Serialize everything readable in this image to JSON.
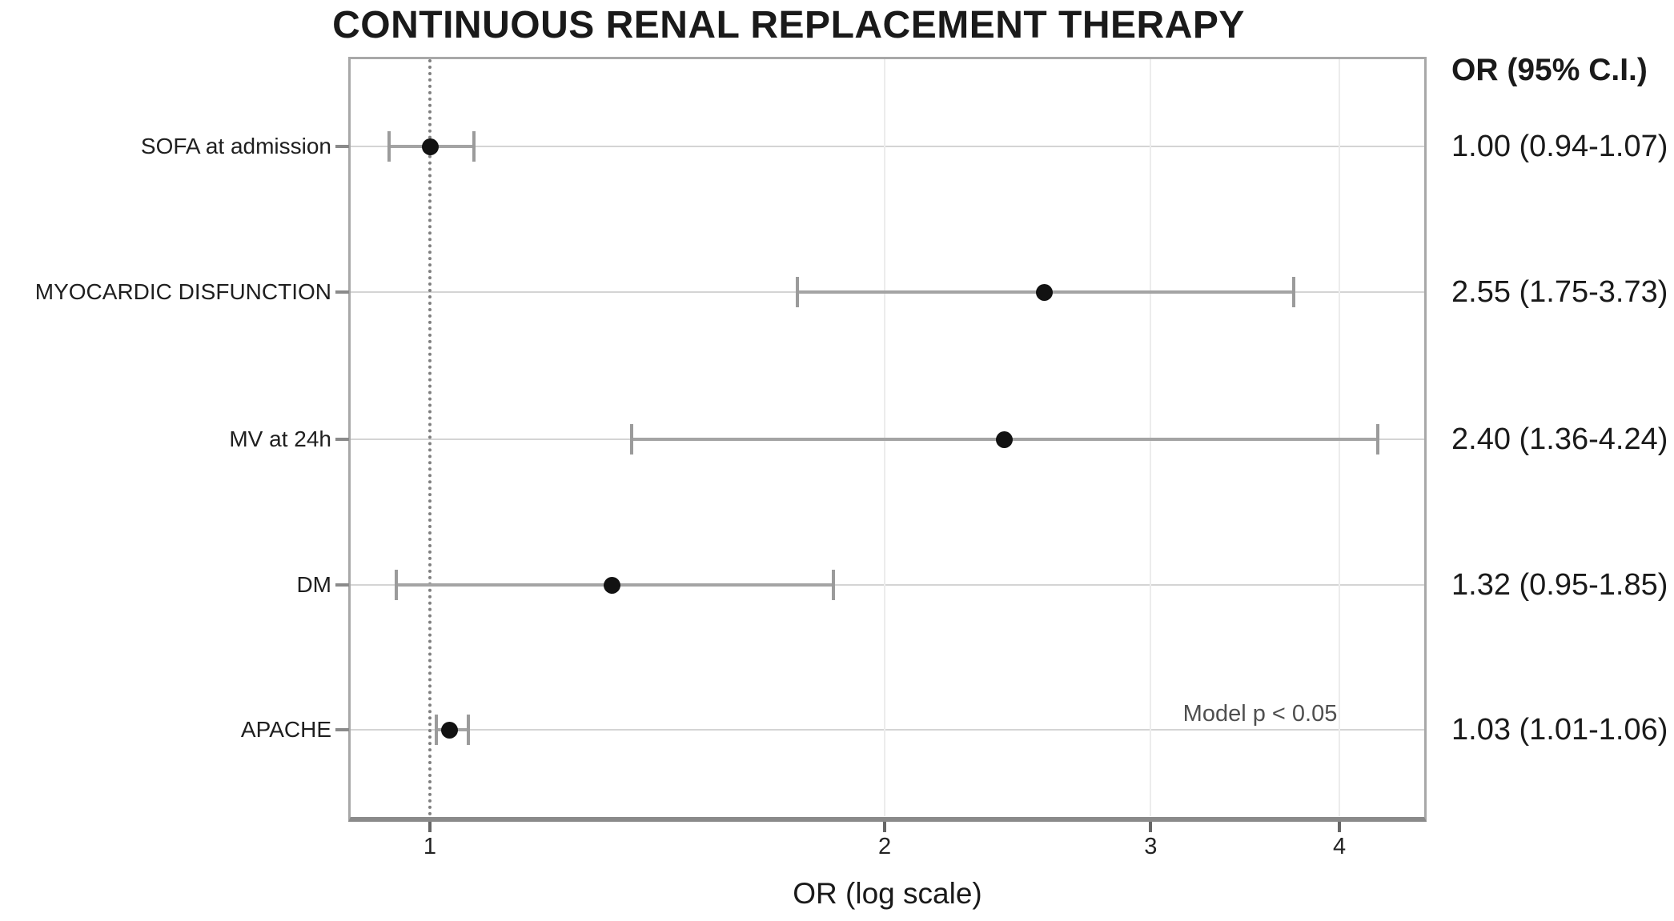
{
  "chart_data": {
    "type": "scatter",
    "variant": "forest-plot",
    "title": "CONTINUOUS RENAL REPLACEMENT THERAPY",
    "xlabel": "OR (log scale)",
    "value_column_header": "OR (95% C.I.)",
    "x_scale": "log",
    "x_ticks": [
      "1",
      "2",
      "3",
      "4"
    ],
    "x_tick_values": [
      1,
      2,
      3,
      4
    ],
    "xlim": [
      0.88,
      4.57
    ],
    "reference_line_x": 1,
    "grid": true,
    "legend": "none",
    "rows": [
      {
        "label": "SOFA at admission",
        "or": 1.0,
        "ci_low": 0.94,
        "ci_high": 1.07,
        "or_text": "1.00 (0.94-1.07)"
      },
      {
        "label": "MYOCARDIC DISFUNCTION",
        "or": 2.55,
        "ci_low": 1.75,
        "ci_high": 3.73,
        "or_text": "2.55 (1.75-3.73)"
      },
      {
        "label": "MV at 24h",
        "or": 2.4,
        "ci_low": 1.36,
        "ci_high": 4.24,
        "or_text": "2.40 (1.36-4.24)"
      },
      {
        "label": "DM",
        "or": 1.32,
        "ci_low": 0.95,
        "ci_high": 1.85,
        "or_text": "1.32 (0.95-1.85)"
      },
      {
        "label": "APACHE",
        "or": 1.03,
        "ci_low": 1.01,
        "ci_high": 1.06,
        "or_text": "1.03 (1.01-1.06)"
      }
    ],
    "annotation": {
      "text": "Model p < 0.05"
    }
  },
  "colors": {
    "text": "#1a1a1a",
    "muted_text": "#4f4f4f",
    "marker": "#121212",
    "ci_line": "#a4a4a4",
    "ci_cap": "#9b9b9b",
    "h_gridline": "#d4d4d4",
    "v_gridline": "#ececec",
    "reference_line": "#808080",
    "panel_border": "#a8a8a8",
    "panel_border_bottom": "#8a8a8a",
    "tick": "#666666",
    "background": "#ffffff"
  }
}
